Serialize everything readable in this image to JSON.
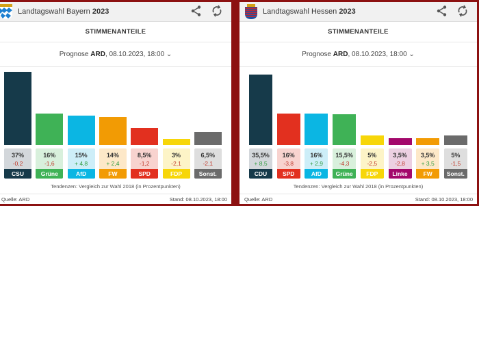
{
  "panels": [
    {
      "title_prefix": "Landtagswahl Bayern",
      "title_year": "2023",
      "section": "STIMMENANTEILE",
      "prognose_label": "Prognose",
      "prognose_source": "ARD",
      "prognose_date": ", 08.10.2023, 18:00",
      "tendency_note": "Tendenzen: Vergleich zur Wahl 2018 (in Prozentpunkten)",
      "source": "Quelle: ARD",
      "stand": "Stand: 08.10.2023, 18:00",
      "crest": "bavaria-crest",
      "parties": [
        {
          "name": "CSU",
          "value": 37,
          "label": "37%",
          "change": "-0,2",
          "color": "#163a4a",
          "light": "#d3d7db"
        },
        {
          "name": "Grüne",
          "value": 16,
          "label": "16%",
          "change": "-1,6",
          "color": "#3fb256",
          "light": "#d8f0dc"
        },
        {
          "name": "AfD",
          "value": 15,
          "label": "15%",
          "change": "+ 4,8",
          "color": "#0bb6e3",
          "light": "#cdeef8"
        },
        {
          "name": "FW",
          "value": 14,
          "label": "14%",
          "change": "+ 2,4",
          "color": "#f29b04",
          "light": "#fde8c8"
        },
        {
          "name": "SPD",
          "value": 8.5,
          "label": "8,5%",
          "change": "-1,2",
          "color": "#e2301f",
          "light": "#f8d3cf"
        },
        {
          "name": "FDP",
          "value": 3,
          "label": "3%",
          "change": "-2,1",
          "color": "#f7d609",
          "light": "#fdf4c7"
        },
        {
          "name": "Sonst.",
          "value": 6.5,
          "label": "6,5%",
          "change": "-2,1",
          "color": "#6b6b6b",
          "light": "#dedede"
        }
      ]
    },
    {
      "title_prefix": "Landtagswahl Hessen",
      "title_year": "2023",
      "section": "STIMMENANTEILE",
      "prognose_label": "Prognose",
      "prognose_source": "ARD",
      "prognose_date": ", 08.10.2023, 18:00",
      "tendency_note": "Tendenzen: Vergleich zur Wahl 2018 (in Prozentpunkten)",
      "source": "Quelle: ARD",
      "stand": "Stand: 08.10.2023, 18:00",
      "crest": "hesse-crest",
      "parties": [
        {
          "name": "CDU",
          "value": 35.5,
          "label": "35,5%",
          "change": "+ 8,5",
          "color": "#163a4a",
          "light": "#d3d7db"
        },
        {
          "name": "SPD",
          "value": 16,
          "label": "16%",
          "change": "-3,8",
          "color": "#e2301f",
          "light": "#f8d3cf"
        },
        {
          "name": "AfD",
          "value": 16,
          "label": "16%",
          "change": "+ 2,9",
          "color": "#0bb6e3",
          "light": "#cdeef8"
        },
        {
          "name": "Grüne",
          "value": 15.5,
          "label": "15,5%",
          "change": "-4,3",
          "color": "#3fb256",
          "light": "#d8f0dc"
        },
        {
          "name": "FDP",
          "value": 5,
          "label": "5%",
          "change": "-2,5",
          "color": "#f7d609",
          "light": "#fdf4c7"
        },
        {
          "name": "Linke",
          "value": 3.5,
          "label": "3,5%",
          "change": "-2,8",
          "color": "#a3086b",
          "light": "#ecd0e2"
        },
        {
          "name": "FW",
          "value": 3.5,
          "label": "3,5%",
          "change": "+ 3,5",
          "color": "#f29b04",
          "light": "#fde8c8"
        },
        {
          "name": "Sonst.",
          "value": 5,
          "label": "5%",
          "change": "-1,5",
          "color": "#6b6b6b",
          "light": "#dedede"
        }
      ]
    }
  ]
}
